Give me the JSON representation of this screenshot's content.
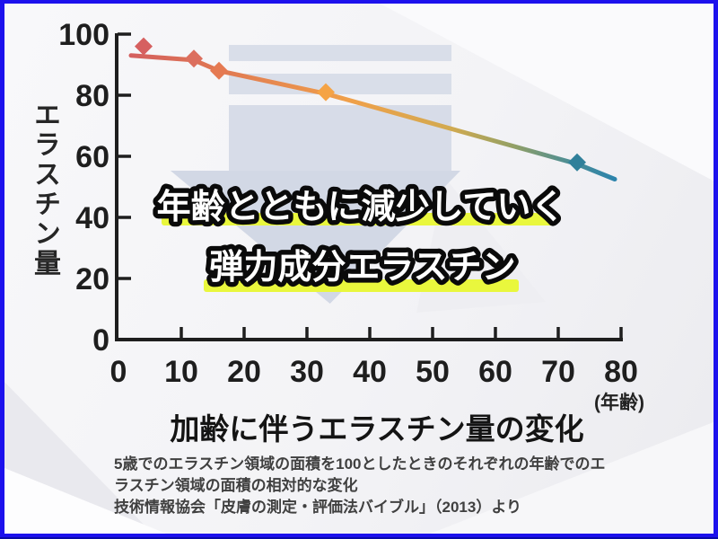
{
  "frame": {
    "border_color": "#1c11ed",
    "border_bottom_dark_color": "#0a0aa8"
  },
  "overlay": {
    "line1": "年齢とともに減少していく",
    "line2": "弾力成分エラスチン",
    "highlight_color": "#e9f73d"
  },
  "chart_data": {
    "type": "line",
    "title": "加齢に伴うエラスチン量の変化",
    "ylabel": "エラスチン量",
    "xlabel": "(年齢)",
    "xlim": [
      0,
      80
    ],
    "ylim": [
      0,
      100
    ],
    "x_ticks": [
      0,
      10,
      20,
      30,
      40,
      50,
      60,
      70,
      80
    ],
    "y_ticks": [
      0,
      20,
      40,
      60,
      80,
      100
    ],
    "grid": false,
    "legend": "none",
    "points": [
      {
        "age": 4,
        "value": 96
      },
      {
        "age": 12,
        "value": 92
      },
      {
        "age": 16,
        "value": 88
      },
      {
        "age": 33,
        "value": 81
      },
      {
        "age": 73,
        "value": 58
      }
    ],
    "marker_colors": [
      "#d66060",
      "#dc6f5e",
      "#e57a52",
      "#f5a345",
      "#30809a"
    ],
    "trend": [
      {
        "age": 2,
        "value": 93
      },
      {
        "age": 12,
        "value": 91.5
      },
      {
        "age": 16,
        "value": 88
      },
      {
        "age": 33,
        "value": 80.5
      },
      {
        "age": 73,
        "value": 57.5
      },
      {
        "age": 79,
        "value": 52.5
      }
    ],
    "line_gradient": [
      {
        "at": 0,
        "color": "#d45f5f"
      },
      {
        "at": 0.14,
        "color": "#dd7254"
      },
      {
        "at": 0.45,
        "color": "#f0a04a"
      },
      {
        "at": 0.66,
        "color": "#d2aa50"
      },
      {
        "at": 0.79,
        "color": "#93a065"
      },
      {
        "at": 0.9,
        "color": "#4f8e92"
      },
      {
        "at": 1,
        "color": "#2c84ac"
      }
    ]
  },
  "caption": {
    "lines": [
      "5歳でのエラスチン領域の面積を100としたときのそれぞれの年齢でのエ",
      "ラスチン領域の面積の相対的な変化",
      "技術情報協会「皮膚の測定・評価法バイブル」（2013）より"
    ]
  }
}
